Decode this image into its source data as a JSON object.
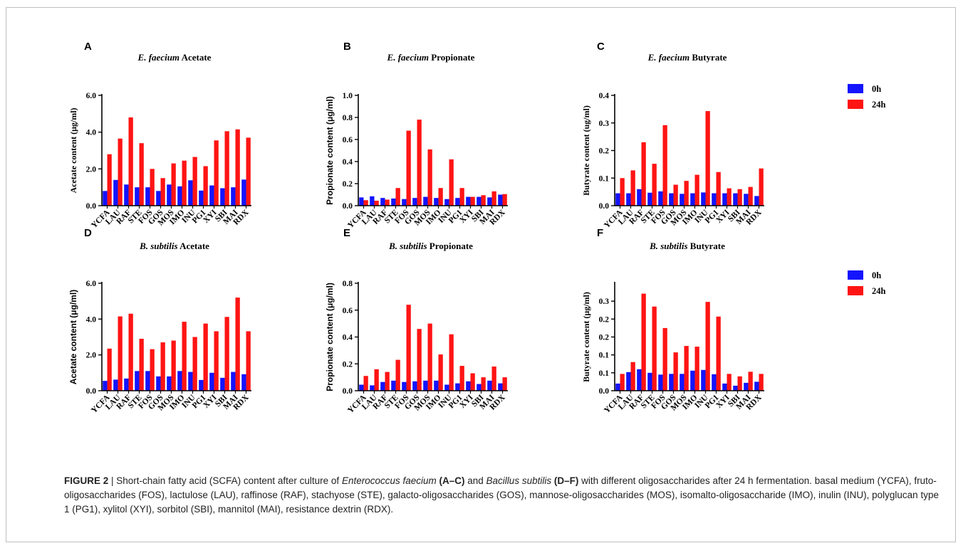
{
  "figure": {
    "caption_label": "FIGURE 2",
    "caption_sep": " | ",
    "caption_parts": [
      {
        "text": "Short-chain fatty acid (SCFA) content after culture of ",
        "style": "normal"
      },
      {
        "text": "Enterococcus faecium",
        "style": "italic"
      },
      {
        "text": " ",
        "style": "normal"
      },
      {
        "text": "(A–C)",
        "style": "bold"
      },
      {
        "text": " and ",
        "style": "normal"
      },
      {
        "text": "Bacillus subtilis",
        "style": "italic"
      },
      {
        "text": " ",
        "style": "normal"
      },
      {
        "text": "(D–F)",
        "style": "bold"
      },
      {
        "text": " with different oligosaccharides after 24 h fermentation. basal medium (YCFA), fruto-oligosaccharides (FOS), lactulose (LAU), raffinose (RAF), stachyose (STE), galacto-oligosaccharides (GOS), mannose-oligosaccharides (MOS), isomalto-oligosaccharide (IMO), inulin (INU), polyglucan type 1 (PG1), xylitol (XYI), sorbitol (SBI), mannitol (MAI), resistance dextrin (RDX).",
        "style": "normal"
      }
    ]
  },
  "legends": [
    {
      "items": [
        {
          "label": "0h",
          "color": "#1414ff"
        },
        {
          "label": "24h",
          "color": "#ff1414"
        }
      ]
    },
    {
      "items": [
        {
          "label": "0h",
          "color": "#1414ff"
        },
        {
          "label": "24h",
          "color": "#ff1414"
        }
      ]
    }
  ],
  "chart_data": [
    {
      "panel": "A",
      "type": "bar",
      "title_italic": "E. faecium",
      "title_rest": " Acetate",
      "ylabel": "Acetate content (μg/ml)",
      "ylabel_font": "serif",
      "ylim": [
        0,
        6
      ],
      "yticks": [
        "0.0",
        "2.0",
        "4.0",
        "6.0"
      ],
      "ytick_values": [
        0,
        2,
        4,
        6
      ],
      "categories": [
        "YCFA",
        "LAU",
        "RAF",
        "STE",
        "FOS",
        "GOS",
        "MOS",
        "IMO",
        "INU",
        "PG1",
        "XYI",
        "SBI",
        "MAI",
        "RDX"
      ],
      "series": [
        {
          "name": "0h",
          "values": [
            0.8,
            1.4,
            1.15,
            1.0,
            1.0,
            0.8,
            1.15,
            1.05,
            1.38,
            0.82,
            1.1,
            0.95,
            1.0,
            1.42
          ]
        },
        {
          "name": "24h",
          "values": [
            2.8,
            3.65,
            4.8,
            3.4,
            2.0,
            1.5,
            2.3,
            2.45,
            2.65,
            2.15,
            3.55,
            4.05,
            4.15,
            3.7
          ]
        }
      ]
    },
    {
      "panel": "B",
      "type": "bar",
      "title_italic": "E. faecium",
      "title_rest": " Propionate",
      "ylabel": "Propionate content (μg/ml)",
      "ylabel_font": "sans",
      "ylim": [
        0,
        1
      ],
      "yticks": [
        "0.0",
        "0.2",
        "0.4",
        "0.6",
        "0.8",
        "1.0"
      ],
      "ytick_values": [
        0,
        0.2,
        0.4,
        0.6,
        0.8,
        1.0
      ],
      "categories": [
        "YCFA",
        "LAU",
        "RAF",
        "STE",
        "FOS",
        "GOS",
        "MOS",
        "IMO",
        "INU",
        "PG1",
        "XYI",
        "SBI",
        "MAI",
        "RDX"
      ],
      "series": [
        {
          "name": "0h",
          "values": [
            0.075,
            0.085,
            0.07,
            0.065,
            0.06,
            0.07,
            0.08,
            0.07,
            0.06,
            0.07,
            0.08,
            0.08,
            0.075,
            0.1
          ]
        },
        {
          "name": "24h",
          "values": [
            0.05,
            0.045,
            0.055,
            0.16,
            0.68,
            0.78,
            0.51,
            0.16,
            0.42,
            0.16,
            0.08,
            0.095,
            0.13,
            0.105
          ]
        }
      ]
    },
    {
      "panel": "C",
      "type": "bar",
      "title_italic": "E. faecium",
      "title_rest": " Butyrate",
      "ylabel": "Butyrate content (ug/ml)",
      "ylabel_font": "serif",
      "ylim": [
        0,
        0.4
      ],
      "yticks": [
        "0.0",
        "0.1",
        "0.2",
        "0.3",
        "0.4"
      ],
      "ytick_values": [
        0,
        0.1,
        0.2,
        0.3,
        0.4
      ],
      "categories": [
        "YCFA",
        "LAU",
        "RAF",
        "STE",
        "FOS",
        "GOS",
        "MOS",
        "IMO",
        "INU",
        "PG1",
        "XYI",
        "SBI",
        "MAI",
        "RDX"
      ],
      "series": [
        {
          "name": "0h",
          "values": [
            0.045,
            0.045,
            0.06,
            0.047,
            0.052,
            0.045,
            0.043,
            0.045,
            0.048,
            0.045,
            0.045,
            0.045,
            0.043,
            0.035
          ]
        },
        {
          "name": "24h",
          "values": [
            0.1,
            0.128,
            0.23,
            0.152,
            0.292,
            0.076,
            0.09,
            0.112,
            0.343,
            0.122,
            0.063,
            0.06,
            0.068,
            0.135
          ]
        }
      ]
    },
    {
      "panel": "D",
      "type": "bar",
      "title_italic": "B. subtilis",
      "title_rest": " Acetate",
      "ylabel": "Acetate content (μg/ml)",
      "ylabel_font": "sans",
      "ylim": [
        0,
        6
      ],
      "yticks": [
        "0.0",
        "2.0",
        "4.0",
        "6.0"
      ],
      "ytick_values": [
        0,
        2,
        4,
        6
      ],
      "categories": [
        "YCFA",
        "LAU",
        "RAF",
        "STE",
        "FOS",
        "GOS",
        "MOS",
        "IMO",
        "INU",
        "PG1",
        "XYI",
        "SBI",
        "MAI",
        "RDX"
      ],
      "series": [
        {
          "name": "0h",
          "values": [
            0.55,
            0.62,
            0.68,
            1.1,
            1.1,
            0.8,
            0.8,
            1.1,
            1.05,
            0.6,
            1.0,
            0.72,
            1.05,
            0.92
          ]
        },
        {
          "name": "24h",
          "values": [
            2.35,
            4.15,
            4.3,
            2.9,
            2.32,
            2.7,
            2.8,
            3.85,
            3.0,
            3.75,
            3.32,
            4.12,
            5.2,
            3.32
          ]
        }
      ]
    },
    {
      "panel": "E",
      "type": "bar",
      "title_italic": "B. subtilis",
      "title_rest": " Propionate",
      "ylabel": "Propionate content (μg/ml)",
      "ylabel_font": "sans",
      "ylim": [
        0,
        0.8
      ],
      "yticks": [
        "0.0",
        "0.2",
        "0.4",
        "0.6",
        "0.8"
      ],
      "ytick_values": [
        0,
        0.2,
        0.4,
        0.6,
        0.8
      ],
      "categories": [
        "YCFA",
        "LAU",
        "RAF",
        "STE",
        "FOS",
        "GOS",
        "MOS",
        "IMO",
        "INU",
        "PG1",
        "XYI",
        "SBI",
        "MAI",
        "RDX"
      ],
      "series": [
        {
          "name": "0h",
          "values": [
            0.045,
            0.04,
            0.065,
            0.075,
            0.065,
            0.07,
            0.075,
            0.075,
            0.045,
            0.055,
            0.07,
            0.05,
            0.075,
            0.055
          ]
        },
        {
          "name": "24h",
          "values": [
            0.11,
            0.16,
            0.14,
            0.23,
            0.64,
            0.46,
            0.5,
            0.27,
            0.42,
            0.185,
            0.13,
            0.1,
            0.18,
            0.1
          ]
        }
      ]
    },
    {
      "panel": "F",
      "type": "bar",
      "title_italic": "B. subtilis",
      "title_rest": " Butyrate",
      "ylabel": "Butyrate content (μg/ml)",
      "ylabel_font": "serif",
      "ylim": [
        0,
        0.3
      ],
      "yticks": [
        "0.0",
        "0.1",
        "0.1",
        "0.2",
        "0.2",
        "0.3"
      ],
      "ytick_values": [
        0,
        0.05,
        0.1,
        0.15,
        0.2,
        0.25
      ],
      "categories": [
        "YCFA",
        "LAU",
        "RAF",
        "STE",
        "FOS",
        "GOS",
        "MOS",
        "IMO",
        "INU",
        "PG1",
        "XYI",
        "SBI",
        "MAI",
        "RDX"
      ],
      "series": [
        {
          "name": "0h",
          "values": [
            0.02,
            0.052,
            0.06,
            0.05,
            0.045,
            0.047,
            0.047,
            0.056,
            0.058,
            0.046,
            0.02,
            0.014,
            0.022,
            0.025
          ]
        },
        {
          "name": "24h",
          "values": [
            0.047,
            0.08,
            0.271,
            0.235,
            0.175,
            0.107,
            0.125,
            0.123,
            0.248,
            0.207,
            0.047,
            0.04,
            0.053,
            0.047
          ]
        }
      ]
    }
  ]
}
